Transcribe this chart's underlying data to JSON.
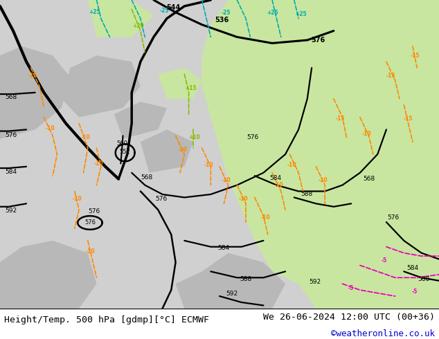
{
  "title_left": "Height/Temp. 500 hPa [gdmp][°C] ECMWF",
  "title_right": "We 26-06-2024 12:00 UTC (00+36)",
  "credit": "©weatheronline.co.uk",
  "fig_width": 6.34,
  "fig_height": 4.9,
  "dpi": 100,
  "title_fontsize": 9.5,
  "credit_fontsize": 9,
  "credit_color": "#0000cc",
  "black_contour_color": "#000000",
  "orange_contour_color": "#ff8800",
  "cyan_contour_color": "#00aaaa",
  "green_contour_color": "#88bb00",
  "pink_contour_color": "#ee00bb",
  "land_green": "#c8e6a0",
  "land_gray": "#b8b8b8",
  "sea_gray": "#d0d0d0"
}
